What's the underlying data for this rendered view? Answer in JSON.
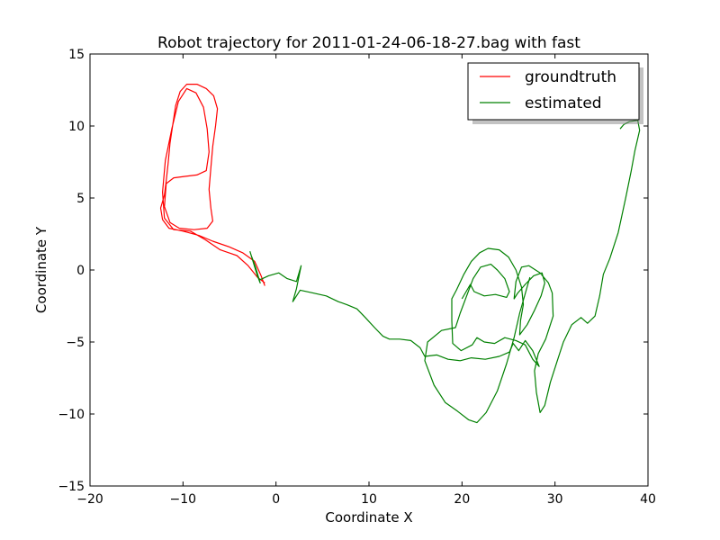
{
  "chart_data": {
    "type": "line",
    "title": "Robot trajectory for 2011-01-24-06-18-27.bag with fast",
    "xlabel": "Coordinate X",
    "ylabel": "Coordinate Y",
    "xlim": [
      -20,
      40
    ],
    "ylim": [
      -15,
      15
    ],
    "xticks": [
      -20,
      -10,
      0,
      10,
      20,
      30,
      40
    ],
    "yticks": [
      -15,
      -10,
      -5,
      0,
      5,
      10,
      15
    ],
    "xtick_labels": [
      "−20",
      "−10",
      "0",
      "10",
      "20",
      "30",
      "40"
    ],
    "ytick_labels": [
      "−15",
      "−10",
      "−5",
      "0",
      "5",
      "10",
      "15"
    ],
    "grid": false,
    "legend_position": "top-right",
    "series": [
      {
        "name": "groundtruth",
        "color": "#ff0000",
        "points": [
          [
            -1.2,
            -1.1
          ],
          [
            -1.6,
            -0.4
          ],
          [
            -2.3,
            0.6
          ],
          [
            -3.6,
            1.2
          ],
          [
            -5.0,
            1.6
          ],
          [
            -6.8,
            2.0
          ],
          [
            -8.3,
            2.4
          ],
          [
            -10.0,
            2.7
          ],
          [
            -11.5,
            2.9
          ],
          [
            -12.2,
            3.5
          ],
          [
            -12.4,
            4.3
          ],
          [
            -12.0,
            5.2
          ],
          [
            -11.8,
            6.2
          ],
          [
            -11.6,
            7.4
          ],
          [
            -11.4,
            8.8
          ],
          [
            -11.1,
            10.1
          ],
          [
            -10.8,
            11.4
          ],
          [
            -10.3,
            12.4
          ],
          [
            -9.6,
            12.9
          ],
          [
            -8.5,
            12.9
          ],
          [
            -7.5,
            12.6
          ],
          [
            -6.7,
            12.1
          ],
          [
            -6.3,
            11.2
          ],
          [
            -6.5,
            10.0
          ],
          [
            -6.8,
            8.6
          ],
          [
            -7.0,
            7.1
          ],
          [
            -7.2,
            5.6
          ],
          [
            -7.0,
            4.3
          ],
          [
            -6.8,
            3.4
          ],
          [
            -7.4,
            2.9
          ],
          [
            -8.8,
            2.8
          ],
          [
            -10.4,
            2.9
          ],
          [
            -11.4,
            3.3
          ],
          [
            -12.0,
            4.4
          ],
          [
            -11.8,
            6.0
          ],
          [
            -11.0,
            6.4
          ],
          [
            -9.8,
            6.5
          ],
          [
            -8.5,
            6.6
          ],
          [
            -7.5,
            6.9
          ],
          [
            -7.2,
            8.2
          ],
          [
            -7.4,
            9.8
          ],
          [
            -7.8,
            11.3
          ],
          [
            -8.6,
            12.3
          ],
          [
            -9.6,
            12.6
          ],
          [
            -10.5,
            11.7
          ],
          [
            -11.2,
            9.8
          ],
          [
            -11.9,
            7.6
          ],
          [
            -12.2,
            5.4
          ],
          [
            -12.0,
            3.6
          ],
          [
            -11.0,
            2.8
          ],
          [
            -9.2,
            2.7
          ],
          [
            -7.6,
            2.1
          ],
          [
            -6.0,
            1.4
          ],
          [
            -4.2,
            1.0
          ],
          [
            -3.0,
            0.3
          ],
          [
            -2.0,
            -0.5
          ],
          [
            -1.2,
            -0.9
          ]
        ]
      },
      {
        "name": "estimated",
        "color": "#008000",
        "points": [
          [
            -2.8,
            1.3
          ],
          [
            -2.0,
            -0.4
          ],
          [
            -1.7,
            -0.9
          ],
          [
            -2.2,
            0.2
          ],
          [
            -2.6,
            0.9
          ],
          [
            -1.8,
            -0.7
          ],
          [
            -0.8,
            -0.4
          ],
          [
            0.3,
            -0.2
          ],
          [
            1.2,
            -0.6
          ],
          [
            2.2,
            -0.8
          ],
          [
            2.7,
            0.3
          ],
          [
            2.2,
            -1.3
          ],
          [
            1.8,
            -2.2
          ],
          [
            2.6,
            -1.4
          ],
          [
            4.0,
            -1.6
          ],
          [
            5.4,
            -1.8
          ],
          [
            6.7,
            -2.2
          ],
          [
            7.6,
            -2.4
          ],
          [
            8.7,
            -2.7
          ],
          [
            9.6,
            -3.3
          ],
          [
            10.6,
            -4.0
          ],
          [
            11.5,
            -4.6
          ],
          [
            12.2,
            -4.8
          ],
          [
            13.3,
            -4.8
          ],
          [
            14.5,
            -4.9
          ],
          [
            15.5,
            -5.4
          ],
          [
            16.0,
            -6.0
          ],
          [
            17.3,
            -5.9
          ],
          [
            18.5,
            -6.2
          ],
          [
            19.8,
            -6.3
          ],
          [
            21.0,
            -6.1
          ],
          [
            22.5,
            -6.2
          ],
          [
            24.0,
            -6.0
          ],
          [
            25.1,
            -5.7
          ],
          [
            25.5,
            -5.1
          ],
          [
            26.1,
            -5.6
          ],
          [
            26.8,
            -4.9
          ],
          [
            27.6,
            -5.6
          ],
          [
            28.3,
            -6.7
          ],
          [
            27.6,
            -6.2
          ],
          [
            26.8,
            -5.2
          ],
          [
            25.8,
            -4.9
          ],
          [
            24.6,
            -4.7
          ],
          [
            23.5,
            -5.1
          ],
          [
            22.4,
            -5.0
          ],
          [
            21.6,
            -4.7
          ],
          [
            21.1,
            -5.2
          ],
          [
            19.9,
            -5.6
          ],
          [
            19.0,
            -5.1
          ],
          [
            18.9,
            -3.5
          ],
          [
            18.9,
            -2.0
          ],
          [
            19.4,
            -1.4
          ],
          [
            20.2,
            -0.3
          ],
          [
            21.0,
            0.6
          ],
          [
            21.9,
            1.2
          ],
          [
            22.8,
            1.5
          ],
          [
            24.0,
            1.4
          ],
          [
            25.0,
            0.9
          ],
          [
            25.8,
            0.0
          ],
          [
            26.4,
            -1.2
          ],
          [
            26.6,
            -2.4
          ],
          [
            26.3,
            -3.5
          ],
          [
            26.2,
            -4.5
          ],
          [
            27.0,
            -3.8
          ],
          [
            27.8,
            -2.8
          ],
          [
            28.5,
            -1.8
          ],
          [
            28.9,
            -0.9
          ],
          [
            28.6,
            -0.2
          ],
          [
            27.7,
            -0.4
          ],
          [
            26.8,
            -1.0
          ],
          [
            26.0,
            -1.6
          ],
          [
            25.6,
            -2.0
          ],
          [
            25.8,
            -0.8
          ],
          [
            26.4,
            0.2
          ],
          [
            27.2,
            0.3
          ],
          [
            28.4,
            -0.2
          ],
          [
            29.3,
            -0.9
          ],
          [
            29.7,
            -1.6
          ],
          [
            29.8,
            -3.2
          ],
          [
            29.0,
            -4.8
          ],
          [
            28.2,
            -5.8
          ],
          [
            27.8,
            -7.0
          ],
          [
            28.0,
            -8.5
          ],
          [
            28.4,
            -9.9
          ],
          [
            28.9,
            -9.4
          ],
          [
            29.5,
            -7.8
          ],
          [
            30.2,
            -6.4
          ],
          [
            30.9,
            -5.0
          ],
          [
            31.8,
            -3.8
          ],
          [
            32.8,
            -3.3
          ],
          [
            33.5,
            -3.7
          ],
          [
            34.3,
            -3.2
          ],
          [
            34.8,
            -1.8
          ],
          [
            35.2,
            -0.3
          ],
          [
            35.9,
            0.8
          ],
          [
            36.8,
            2.6
          ],
          [
            37.6,
            5.0
          ],
          [
            38.2,
            6.9
          ],
          [
            38.6,
            8.3
          ],
          [
            39.1,
            9.7
          ],
          [
            38.9,
            10.4
          ],
          [
            38.0,
            10.3
          ],
          [
            37.4,
            10.1
          ],
          [
            37.0,
            9.8
          ]
        ]
      },
      {
        "name": "",
        "color": "#008000",
        "points": [
          [
            27.3,
            -0.5
          ],
          [
            26.2,
            -3.0
          ],
          [
            25.6,
            -4.7
          ],
          [
            24.8,
            -6.5
          ],
          [
            23.8,
            -8.4
          ],
          [
            22.6,
            -9.9
          ],
          [
            21.6,
            -10.6
          ],
          [
            20.7,
            -10.4
          ],
          [
            19.5,
            -9.8
          ],
          [
            18.2,
            -9.2
          ],
          [
            17.0,
            -8.0
          ],
          [
            16.0,
            -6.3
          ],
          [
            16.3,
            -5.0
          ],
          [
            17.8,
            -4.2
          ],
          [
            19.3,
            -4.0
          ],
          [
            19.8,
            -3.0
          ],
          [
            20.5,
            -1.8
          ],
          [
            21.2,
            -0.6
          ],
          [
            22.0,
            0.2
          ],
          [
            23.1,
            0.4
          ],
          [
            23.8,
            0.0
          ],
          [
            24.6,
            -0.6
          ],
          [
            25.1,
            -1.5
          ],
          [
            24.8,
            -1.9
          ],
          [
            23.6,
            -1.7
          ],
          [
            22.4,
            -1.8
          ],
          [
            21.3,
            -1.5
          ],
          [
            20.9,
            -1.0
          ],
          [
            20.0,
            -2.0
          ]
        ]
      }
    ]
  }
}
